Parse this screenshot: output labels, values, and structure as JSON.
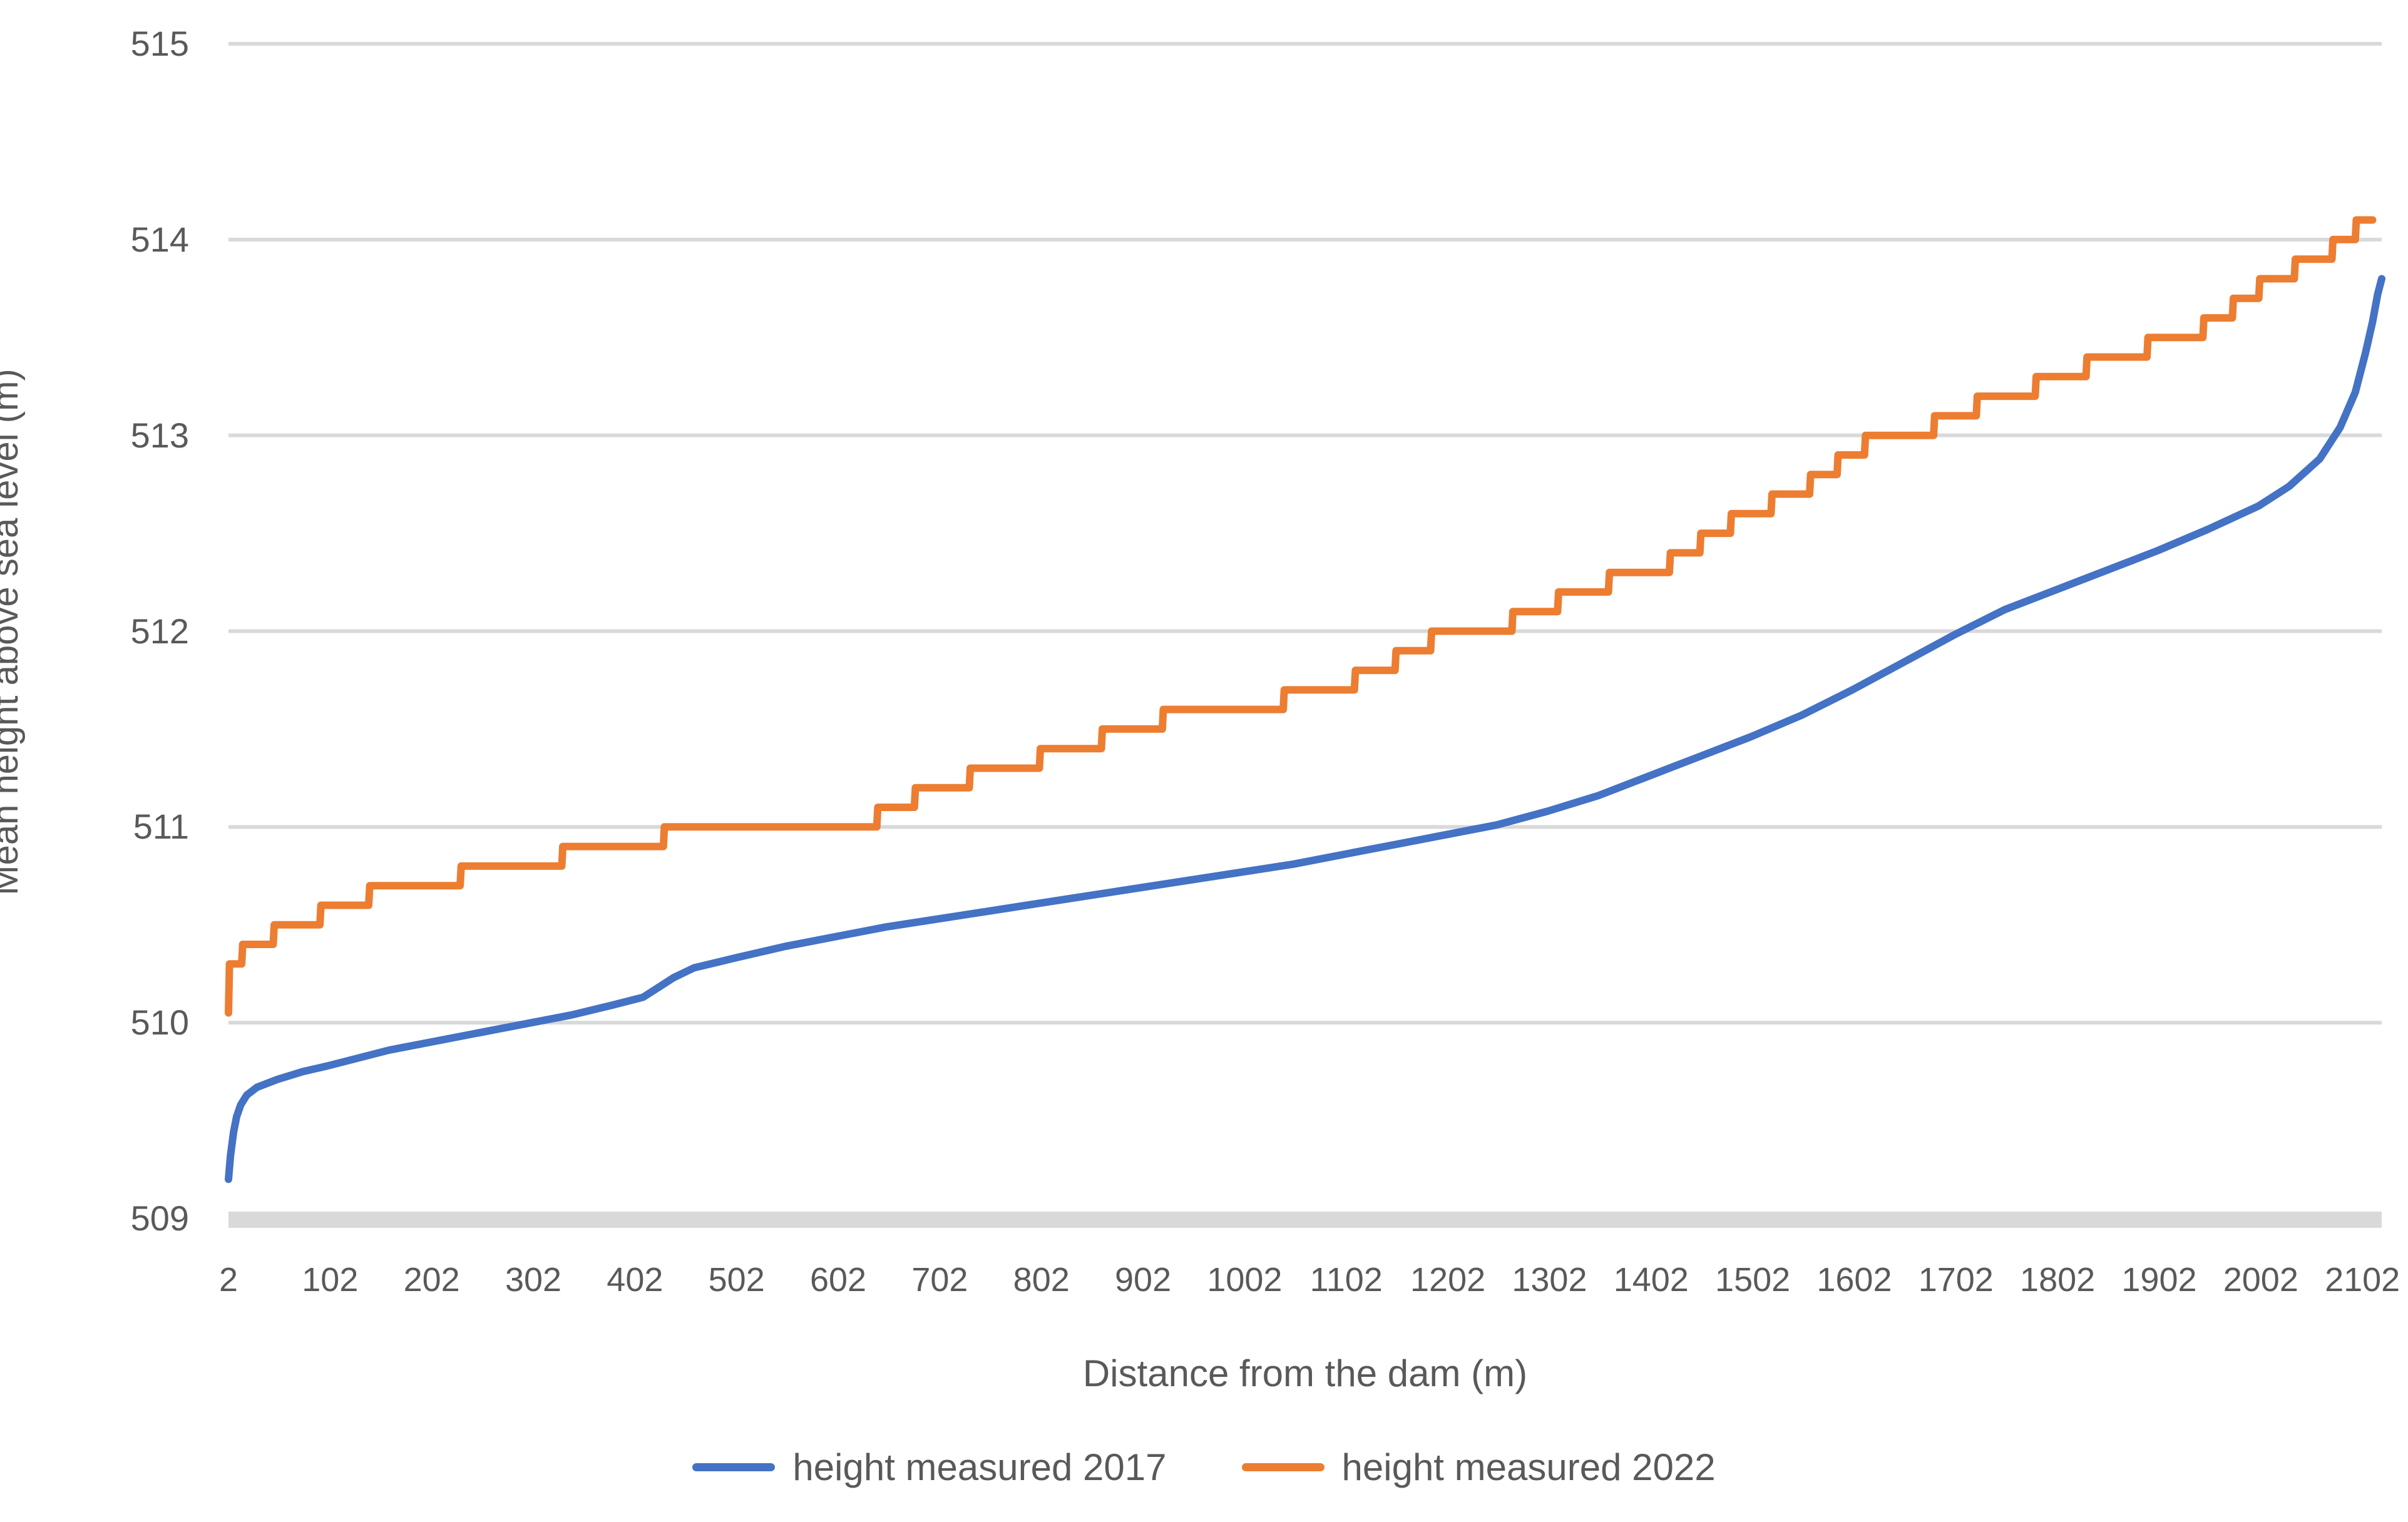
{
  "colors": {
    "series_2017": "#4472C4",
    "series_2022": "#ED7D31",
    "gridline": "#D9D9D9",
    "axis_band": "#D9D9D9",
    "text": "#595959"
  },
  "chart_data": {
    "type": "line",
    "title": "",
    "xlabel": "Distance from the dam (m)",
    "ylabel": "Mean height above sea level (m)",
    "x_tick_labels": [
      "2",
      "102",
      "202",
      "302",
      "402",
      "502",
      "602",
      "702",
      "802",
      "902",
      "1002",
      "1102",
      "1202",
      "1302",
      "1402",
      "1502",
      "1602",
      "1702",
      "1802",
      "1902",
      "2002",
      "2102"
    ],
    "x_tick_values": [
      2,
      102,
      202,
      302,
      402,
      502,
      602,
      702,
      802,
      902,
      1002,
      1102,
      1202,
      1302,
      1402,
      1502,
      1602,
      1702,
      1802,
      1902,
      2002,
      2102
    ],
    "y_ticks": [
      509,
      510,
      511,
      512,
      513,
      514,
      515
    ],
    "xlim": [
      2,
      2121
    ],
    "ylim": [
      509,
      515
    ],
    "grid": "horizontal",
    "legend_position": "bottom",
    "series": [
      {
        "name": "height measured 2017",
        "color": "#4472C4",
        "style": "smooth",
        "points": [
          [
            2,
            509.2
          ],
          [
            4,
            509.32
          ],
          [
            7,
            509.44
          ],
          [
            10,
            509.52
          ],
          [
            14,
            509.58
          ],
          [
            20,
            509.63
          ],
          [
            30,
            509.67
          ],
          [
            50,
            509.71
          ],
          [
            75,
            509.75
          ],
          [
            100,
            509.78
          ],
          [
            130,
            509.82
          ],
          [
            160,
            509.86
          ],
          [
            200,
            509.9
          ],
          [
            250,
            509.95
          ],
          [
            300,
            510.0
          ],
          [
            340,
            510.04
          ],
          [
            380,
            510.09
          ],
          [
            410,
            510.13
          ],
          [
            425,
            510.18
          ],
          [
            440,
            510.23
          ],
          [
            460,
            510.28
          ],
          [
            500,
            510.33
          ],
          [
            550,
            510.39
          ],
          [
            600,
            510.44
          ],
          [
            650,
            510.49
          ],
          [
            700,
            510.53
          ],
          [
            750,
            510.57
          ],
          [
            800,
            510.61
          ],
          [
            850,
            510.65
          ],
          [
            900,
            510.69
          ],
          [
            950,
            510.73
          ],
          [
            1000,
            510.77
          ],
          [
            1050,
            510.81
          ],
          [
            1100,
            510.86
          ],
          [
            1150,
            510.91
          ],
          [
            1200,
            510.96
          ],
          [
            1250,
            511.01
          ],
          [
            1300,
            511.08
          ],
          [
            1350,
            511.16
          ],
          [
            1400,
            511.26
          ],
          [
            1450,
            511.36
          ],
          [
            1500,
            511.46
          ],
          [
            1550,
            511.57
          ],
          [
            1600,
            511.7
          ],
          [
            1650,
            511.84
          ],
          [
            1700,
            511.98
          ],
          [
            1750,
            512.11
          ],
          [
            1800,
            512.21
          ],
          [
            1850,
            512.31
          ],
          [
            1900,
            512.41
          ],
          [
            1950,
            512.52
          ],
          [
            2000,
            512.64
          ],
          [
            2030,
            512.74
          ],
          [
            2060,
            512.88
          ],
          [
            2080,
            513.04
          ],
          [
            2095,
            513.22
          ],
          [
            2105,
            513.42
          ],
          [
            2112,
            513.58
          ],
          [
            2117,
            513.72
          ],
          [
            2121,
            513.8
          ]
        ]
      },
      {
        "name": "height measured 2022",
        "color": "#ED7D31",
        "style": "step",
        "points": [
          [
            2,
            510.05
          ],
          [
            3,
            510.3
          ],
          [
            15,
            510.3
          ],
          [
            16,
            510.4
          ],
          [
            46,
            510.4
          ],
          [
            47,
            510.5
          ],
          [
            92,
            510.5
          ],
          [
            93,
            510.6
          ],
          [
            140,
            510.6
          ],
          [
            141,
            510.7
          ],
          [
            230,
            510.7
          ],
          [
            231,
            510.8
          ],
          [
            330,
            510.8
          ],
          [
            331,
            510.9
          ],
          [
            430,
            510.9
          ],
          [
            431,
            511.0
          ],
          [
            640,
            511.0
          ],
          [
            641,
            511.1
          ],
          [
            677,
            511.1
          ],
          [
            678,
            511.2
          ],
          [
            731,
            511.2
          ],
          [
            732,
            511.3
          ],
          [
            800,
            511.3
          ],
          [
            801,
            511.4
          ],
          [
            861,
            511.4
          ],
          [
            862,
            511.5
          ],
          [
            921,
            511.5
          ],
          [
            922,
            511.6
          ],
          [
            1040,
            511.6
          ],
          [
            1041,
            511.7
          ],
          [
            1110,
            511.7
          ],
          [
            1111,
            511.8
          ],
          [
            1150,
            511.8
          ],
          [
            1151,
            511.9
          ],
          [
            1185,
            511.9
          ],
          [
            1186,
            512.0
          ],
          [
            1265,
            512.0
          ],
          [
            1266,
            512.1
          ],
          [
            1310,
            512.1
          ],
          [
            1311,
            512.2
          ],
          [
            1360,
            512.2
          ],
          [
            1361,
            512.3
          ],
          [
            1420,
            512.3
          ],
          [
            1421,
            512.4
          ],
          [
            1450,
            512.4
          ],
          [
            1451,
            512.5
          ],
          [
            1480,
            512.5
          ],
          [
            1481,
            512.6
          ],
          [
            1520,
            512.6
          ],
          [
            1521,
            512.7
          ],
          [
            1558,
            512.7
          ],
          [
            1559,
            512.8
          ],
          [
            1585,
            512.8
          ],
          [
            1586,
            512.9
          ],
          [
            1612,
            512.9
          ],
          [
            1613,
            513.0
          ],
          [
            1680,
            513.0
          ],
          [
            1681,
            513.1
          ],
          [
            1722,
            513.1
          ],
          [
            1723,
            513.2
          ],
          [
            1780,
            513.2
          ],
          [
            1781,
            513.3
          ],
          [
            1830,
            513.3
          ],
          [
            1831,
            513.4
          ],
          [
            1890,
            513.4
          ],
          [
            1891,
            513.5
          ],
          [
            1945,
            513.5
          ],
          [
            1946,
            513.6
          ],
          [
            1974,
            513.6
          ],
          [
            1975,
            513.7
          ],
          [
            2000,
            513.7
          ],
          [
            2001,
            513.8
          ],
          [
            2035,
            513.8
          ],
          [
            2036,
            513.9
          ],
          [
            2072,
            513.9
          ],
          [
            2073,
            514.0
          ],
          [
            2095,
            514.0
          ],
          [
            2096,
            514.1
          ],
          [
            2112,
            514.1
          ]
        ]
      }
    ]
  },
  "legend": {
    "item_2017": "height measured 2017",
    "item_2022": "height measured 2022"
  }
}
